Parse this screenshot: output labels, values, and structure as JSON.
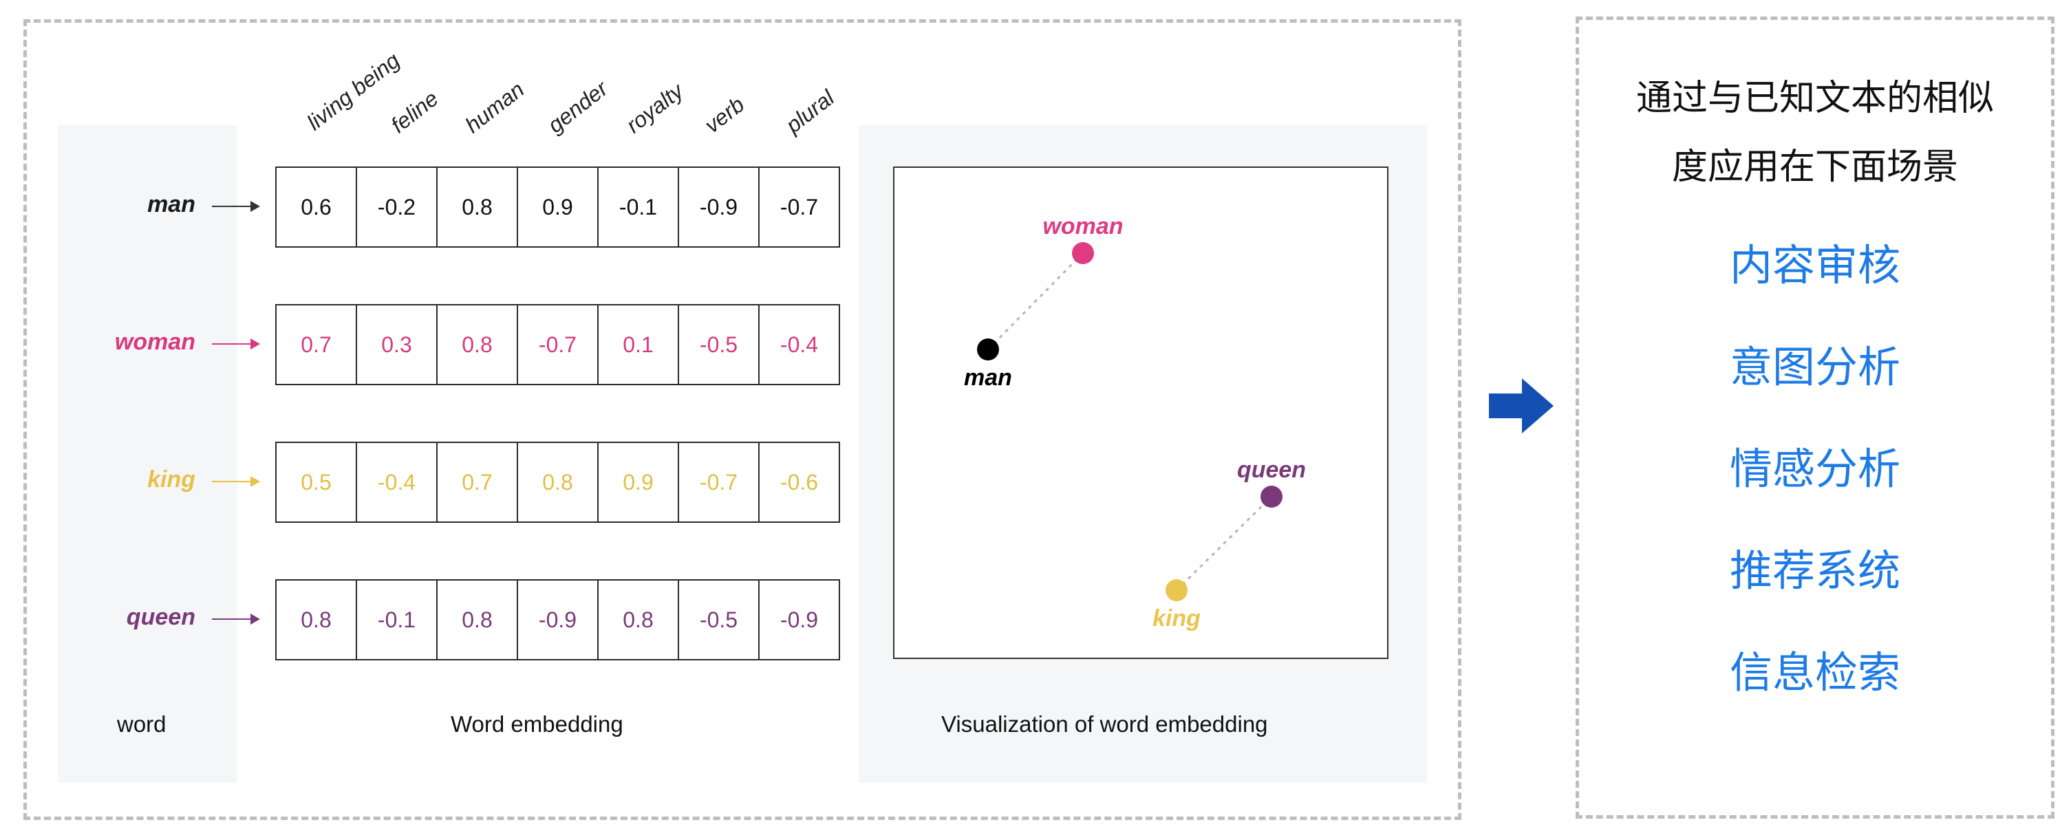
{
  "features": [
    "living being",
    "feline",
    "human",
    "gender",
    "royalty",
    "verb",
    "plural"
  ],
  "rows": [
    {
      "word": "man",
      "color": "#1a1a1a",
      "arrow_color": "#333333",
      "text_color": "#111111",
      "values": [
        "0.6",
        "-0.2",
        "0.8",
        "0.9",
        "-0.1",
        "-0.9",
        "-0.7"
      ]
    },
    {
      "word": "woman",
      "color": "#d63a7f",
      "arrow_color": "#d63a7f",
      "text_color": "#d63a7f",
      "values": [
        "0.7",
        "0.3",
        "0.8",
        "-0.7",
        "0.1",
        "-0.5",
        "-0.4"
      ]
    },
    {
      "word": "king",
      "color": "#e6c24a",
      "arrow_color": "#e6c24a",
      "text_color": "#e0bf45",
      "values": [
        "0.5",
        "-0.4",
        "0.7",
        "0.8",
        "0.9",
        "-0.7",
        "-0.6"
      ]
    },
    {
      "word": "queen",
      "color": "#7a3a7a",
      "arrow_color": "#7a3a7a",
      "text_color": "#7a3a7a",
      "values": [
        "0.8",
        "-0.1",
        "0.8",
        "-0.9",
        "0.8",
        "-0.5",
        "-0.9"
      ]
    }
  ],
  "captions": {
    "word": "word",
    "embedding": "Word embedding",
    "visualization": "Visualization of word embedding"
  },
  "viz_points": [
    {
      "label": "woman",
      "color": "#e03a82",
      "label_position": "above"
    },
    {
      "label": "man",
      "color": "#000000",
      "label_position": "below"
    },
    {
      "label": "queen",
      "color": "#7a3a7a",
      "label_position": "above"
    },
    {
      "label": "king",
      "color": "#eac54f",
      "label_position": "below"
    }
  ],
  "right_panel": {
    "title_line1": "通过与已知文本的相似",
    "title_line2": "度应用在下面场景",
    "items": [
      "内容审核",
      "意图分析",
      "情感分析",
      "推荐系统",
      "信息检索"
    ],
    "item_color": "#1e7be6"
  },
  "arrow_color": "#1450b4"
}
